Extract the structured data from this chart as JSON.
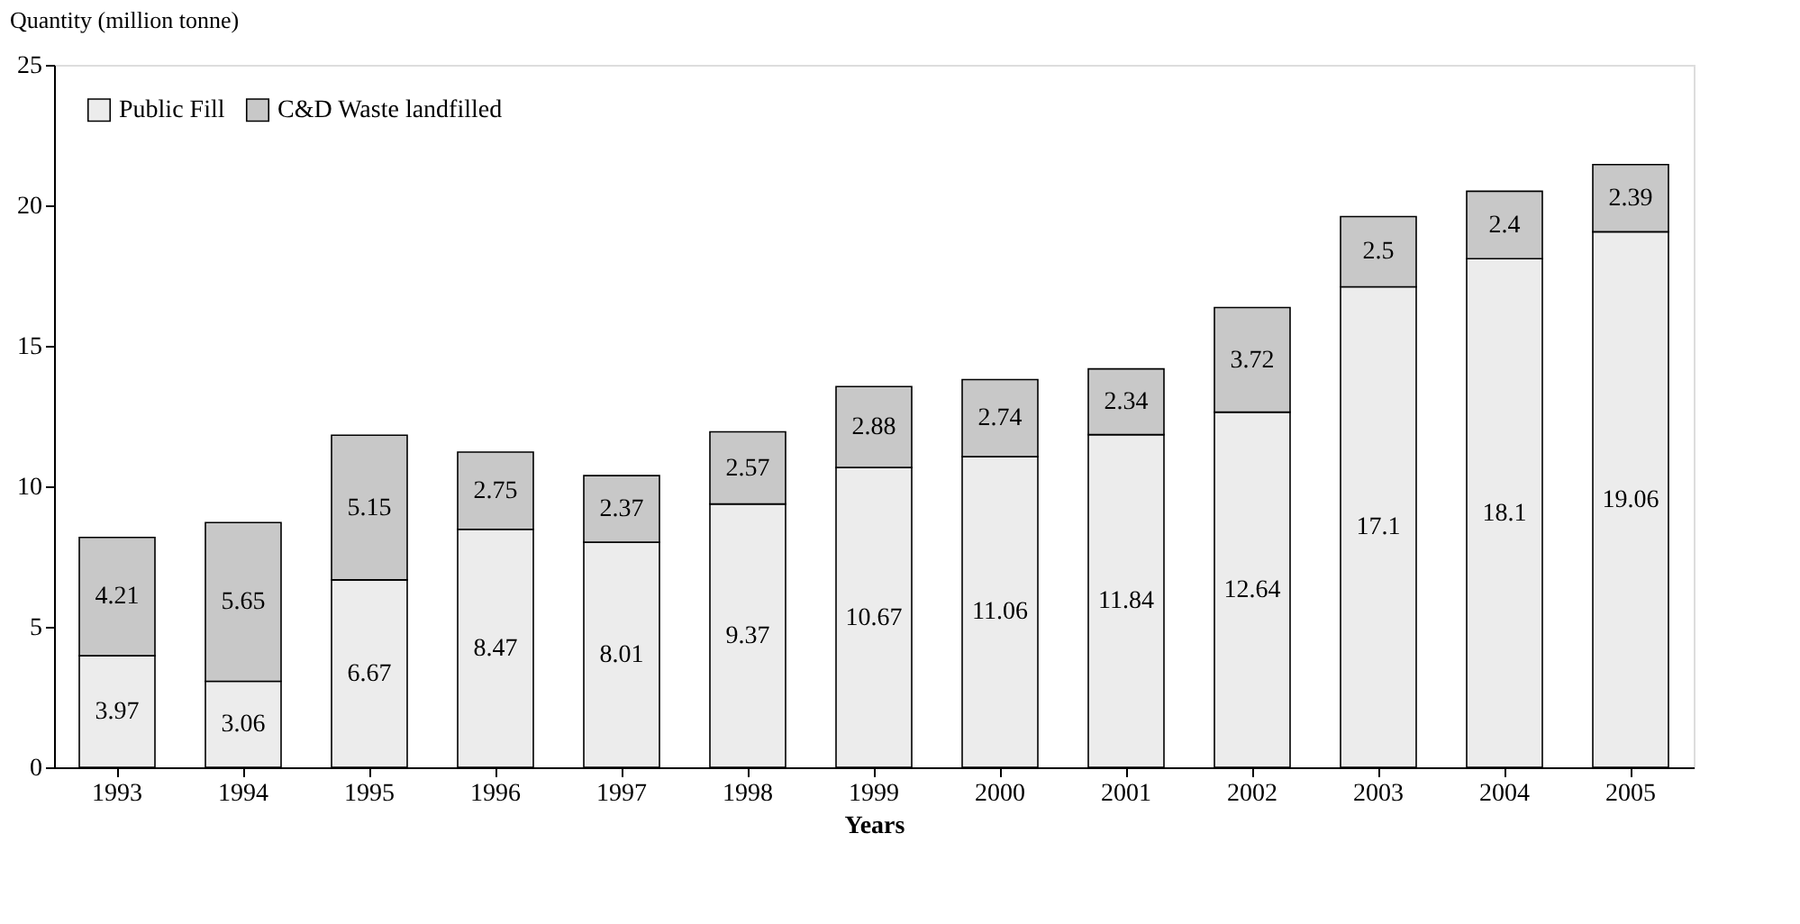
{
  "chart_data": {
    "type": "bar",
    "stacked": true,
    "xlabel": "Years",
    "ylabel": "Quantity (million tonne)",
    "categories": [
      "1993",
      "1994",
      "1995",
      "1996",
      "1997",
      "1998",
      "1999",
      "2000",
      "2001",
      "2002",
      "2003",
      "2004",
      "2005"
    ],
    "series": [
      {
        "name": "Public Fill",
        "color": "#ececec",
        "values": [
          3.97,
          3.06,
          6.67,
          8.47,
          8.01,
          9.37,
          10.67,
          11.06,
          11.84,
          12.64,
          17.1,
          18.1,
          19.06
        ]
      },
      {
        "name": "C&D Waste landfilled",
        "color": "#c8c8c8",
        "values": [
          4.21,
          5.65,
          5.15,
          2.75,
          2.37,
          2.57,
          2.88,
          2.74,
          2.34,
          3.72,
          2.5,
          2.4,
          2.39
        ]
      }
    ],
    "ylim": [
      0,
      25
    ],
    "yticks": [
      0,
      5,
      10,
      15,
      20,
      25
    ],
    "grid": false,
    "legend": "top left",
    "data_labels": true
  }
}
